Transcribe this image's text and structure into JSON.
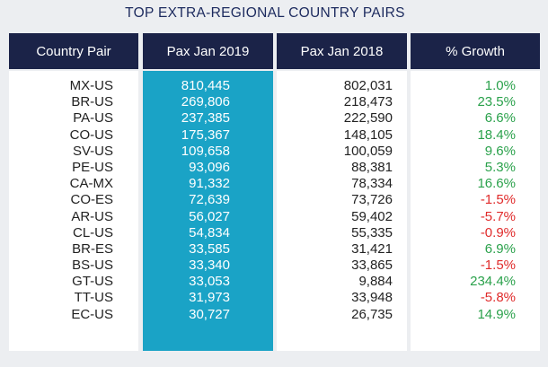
{
  "chart_data": {
    "type": "table",
    "title": "TOP EXTRA-REGIONAL COUNTRY PAIRS",
    "columns": [
      "Country Pair",
      "Pax Jan 2019",
      "Pax Jan 2018",
      "% Growth"
    ],
    "rows": [
      {
        "pair": "MX-US",
        "pax2019": "810,445",
        "pax2018": "802,031",
        "growth": "1.0%",
        "trend": "pos"
      },
      {
        "pair": "BR-US",
        "pax2019": "269,806",
        "pax2018": "218,473",
        "growth": "23.5%",
        "trend": "pos"
      },
      {
        "pair": "PA-US",
        "pax2019": "237,385",
        "pax2018": "222,590",
        "growth": "6.6%",
        "trend": "pos"
      },
      {
        "pair": "CO-US",
        "pax2019": "175,367",
        "pax2018": "148,105",
        "growth": "18.4%",
        "trend": "pos"
      },
      {
        "pair": "SV-US",
        "pax2019": "109,658",
        "pax2018": "100,059",
        "growth": "9.6%",
        "trend": "pos"
      },
      {
        "pair": "PE-US",
        "pax2019": "93,096",
        "pax2018": "88,381",
        "growth": "5.3%",
        "trend": "pos"
      },
      {
        "pair": "CA-MX",
        "pax2019": "91,332",
        "pax2018": "78,334",
        "growth": "16.6%",
        "trend": "pos"
      },
      {
        "pair": "CO-ES",
        "pax2019": "72,639",
        "pax2018": "73,726",
        "growth": "-1.5%",
        "trend": "neg"
      },
      {
        "pair": "AR-US",
        "pax2019": "56,027",
        "pax2018": "59,402",
        "growth": "-5.7%",
        "trend": "neg"
      },
      {
        "pair": "CL-US",
        "pax2019": "54,834",
        "pax2018": "55,335",
        "growth": "-0.9%",
        "trend": "neg"
      },
      {
        "pair": "BR-ES",
        "pax2019": "33,585",
        "pax2018": "31,421",
        "growth": "6.9%",
        "trend": "pos"
      },
      {
        "pair": "BS-US",
        "pax2019": "33,340",
        "pax2018": "33,865",
        "growth": "-1.5%",
        "trend": "neg"
      },
      {
        "pair": "GT-US",
        "pax2019": "33,053",
        "pax2018": "9,884",
        "growth": "234.4%",
        "trend": "pos"
      },
      {
        "pair": "TT-US",
        "pax2019": "31,973",
        "pax2018": "33,948",
        "growth": "-5.8%",
        "trend": "neg"
      },
      {
        "pair": "EC-US",
        "pax2019": "30,727",
        "pax2018": "26,735",
        "growth": "14.9%",
        "trend": "pos"
      }
    ],
    "colors": {
      "header_bg": "#1b2348",
      "highlight_column": "#1aa3c6",
      "positive": "#2aa14b",
      "negative": "#e02a2a"
    }
  }
}
